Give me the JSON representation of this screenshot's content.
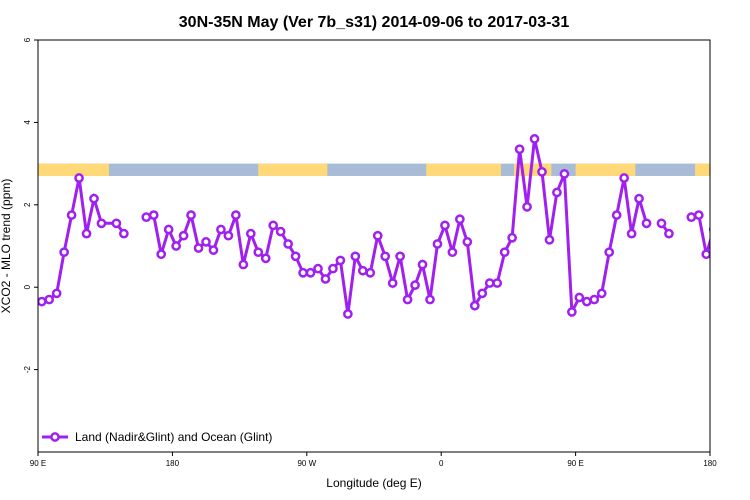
{
  "chart_data": {
    "type": "line",
    "title": "30N-35N May (Ver 7b_s31)   2014-09-06 to 2017-03-31",
    "xlabel": "Longitude (deg E)",
    "ylabel": "XCO2 - MLO trend (ppm)",
    "xlim": [
      90,
      450
    ],
    "ylim": [
      -4,
      6
    ],
    "x_ticks": [
      {
        "value": 90,
        "label": "90 E"
      },
      {
        "value": 162,
        "label": "180"
      },
      {
        "value": 234,
        "label": "90 W"
      },
      {
        "value": 306,
        "label": "0"
      },
      {
        "value": 378,
        "label": "90 E"
      },
      {
        "value": 450,
        "label": "180"
      }
    ],
    "y_ticks": [
      {
        "value": -2,
        "label": "-2"
      },
      {
        "value": 0,
        "label": "0"
      },
      {
        "value": 2,
        "label": "2"
      },
      {
        "value": 4,
        "label": "4"
      },
      {
        "value": 6,
        "label": "6"
      }
    ],
    "grid": false,
    "legend": {
      "position": "bottom-left",
      "entries": [
        {
          "name": "Land (Nadir&Glint) and Ocean (Glint)",
          "color": "#a020f0"
        }
      ]
    },
    "land_ocean_band": {
      "y_range": [
        2.7,
        3.0
      ],
      "land_color": "#ffd878",
      "ocean_color": "#a8bcd8",
      "land_x_ranges": [
        [
          90,
          128
        ],
        [
          208,
          245
        ],
        [
          298,
          338
        ],
        [
          345,
          365
        ],
        [
          378,
          410
        ],
        [
          442,
          450
        ]
      ]
    },
    "series": [
      {
        "name": "Land (Nadir&Glint) and Ocean (Glint)",
        "color": "#a020f0",
        "points": [
          [
            92,
            -0.35
          ],
          [
            96,
            -0.3
          ],
          [
            100,
            -0.15
          ],
          [
            104,
            0.85
          ],
          [
            108,
            1.75
          ],
          [
            112,
            2.65
          ],
          [
            116,
            1.3
          ],
          [
            120,
            2.15
          ],
          [
            124,
            1.55
          ],
          [
            132,
            1.55
          ],
          [
            136,
            1.3
          ],
          null,
          [
            148,
            1.7
          ],
          [
            152,
            1.75
          ],
          [
            156,
            0.8
          ],
          [
            160,
            1.4
          ],
          [
            164,
            1.0
          ],
          [
            168,
            1.25
          ],
          [
            172,
            1.75
          ],
          [
            176,
            0.95
          ],
          [
            180,
            1.1
          ],
          [
            184,
            0.9
          ],
          [
            188,
            1.4
          ],
          [
            192,
            1.25
          ],
          [
            196,
            1.75
          ],
          [
            200,
            0.55
          ],
          [
            204,
            1.3
          ],
          [
            208,
            0.85
          ],
          [
            212,
            0.7
          ],
          [
            216,
            1.5
          ],
          [
            220,
            1.35
          ],
          [
            224,
            1.05
          ],
          [
            228,
            0.75
          ],
          [
            232,
            0.35
          ],
          [
            236,
            0.35
          ],
          [
            240,
            0.45
          ],
          [
            244,
            0.2
          ],
          [
            248,
            0.45
          ],
          [
            252,
            0.65
          ],
          [
            256,
            -0.65
          ],
          [
            260,
            0.75
          ],
          [
            264,
            0.4
          ],
          [
            268,
            0.35
          ],
          [
            272,
            1.25
          ],
          [
            276,
            0.75
          ],
          [
            280,
            0.1
          ],
          [
            284,
            0.75
          ],
          [
            288,
            -0.3
          ],
          [
            292,
            0.05
          ],
          [
            296,
            0.55
          ],
          [
            300,
            -0.3
          ],
          [
            304,
            1.05
          ],
          [
            308,
            1.5
          ],
          [
            312,
            0.85
          ],
          [
            316,
            1.65
          ],
          [
            320,
            1.1
          ],
          [
            324,
            -0.45
          ],
          [
            328,
            -0.15
          ],
          [
            332,
            0.1
          ],
          [
            336,
            0.1
          ],
          [
            340,
            0.85
          ],
          [
            344,
            1.2
          ],
          [
            348,
            3.35
          ],
          [
            352,
            1.95
          ],
          [
            356,
            3.6
          ],
          [
            360,
            2.8
          ],
          [
            364,
            1.15
          ],
          [
            368,
            2.3
          ],
          [
            372,
            2.75
          ],
          [
            376,
            -0.6
          ],
          [
            380,
            -0.25
          ],
          [
            384,
            -0.35
          ],
          [
            388,
            -0.3
          ],
          [
            392,
            -0.15
          ],
          [
            396,
            0.85
          ],
          [
            400,
            1.75
          ],
          [
            404,
            2.65
          ],
          [
            408,
            1.3
          ],
          [
            412,
            2.15
          ],
          [
            416,
            1.55
          ],
          null,
          [
            424,
            1.55
          ],
          [
            428,
            1.3
          ],
          null,
          [
            440,
            1.7
          ],
          [
            444,
            1.75
          ],
          [
            448,
            0.8
          ],
          [
            452,
            1.4
          ],
          [
            456,
            1.0
          ],
          [
            460,
            1.25
          ]
        ]
      }
    ]
  }
}
